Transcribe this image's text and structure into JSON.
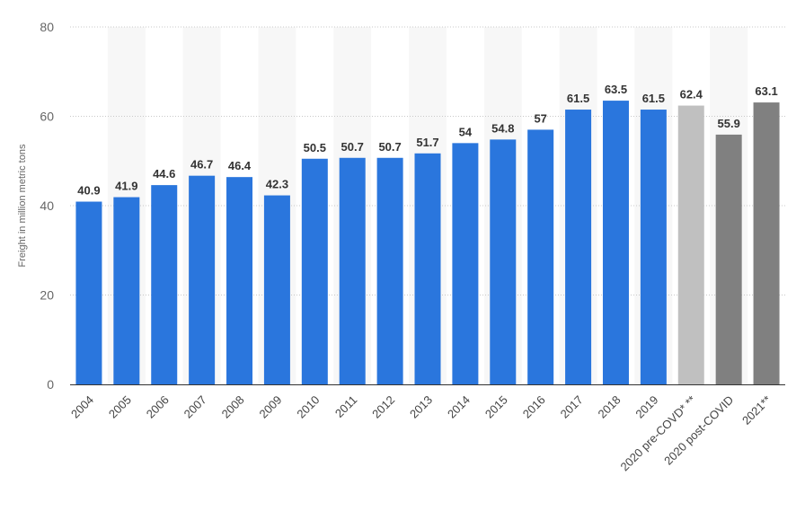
{
  "chart_data": {
    "type": "bar",
    "title": "",
    "xlabel": "",
    "ylabel": "Freight in million metric tons",
    "ylim": [
      0,
      80
    ],
    "yticks": [
      0,
      20,
      40,
      60,
      80
    ],
    "grid": true,
    "categories": [
      "2004",
      "2005",
      "2006",
      "2007",
      "2008",
      "2009",
      "2010",
      "2011",
      "2012",
      "2013",
      "2014",
      "2015",
      "2016",
      "2017",
      "2018",
      "2019",
      "2020 pre-COVD* **",
      "2020 post-COVID",
      "2021**"
    ],
    "values": [
      40.9,
      41.9,
      44.6,
      46.7,
      46.4,
      42.3,
      50.5,
      50.7,
      50.7,
      51.7,
      54,
      54.8,
      57,
      61.5,
      63.5,
      61.5,
      62.4,
      55.9,
      63.1
    ],
    "data_labels": [
      "40.9",
      "41.9",
      "44.6",
      "46.7",
      "46.4",
      "42.3",
      "50.5",
      "50.7",
      "50.7",
      "51.7",
      "54",
      "54.8",
      "57",
      "61.5",
      "63.5",
      "61.5",
      "62.4",
      "55.9",
      "63.1"
    ],
    "colors": [
      "#2a76dd",
      "#2a76dd",
      "#2a76dd",
      "#2a76dd",
      "#2a76dd",
      "#2a76dd",
      "#2a76dd",
      "#2a76dd",
      "#2a76dd",
      "#2a76dd",
      "#2a76dd",
      "#2a76dd",
      "#2a76dd",
      "#2a76dd",
      "#2a76dd",
      "#2a76dd",
      "#c0c0c0",
      "#808080",
      "#808080"
    ],
    "band_color": "#f7f7f7",
    "grid_color": "#c8c8c8",
    "axis_color": "#333333"
  }
}
